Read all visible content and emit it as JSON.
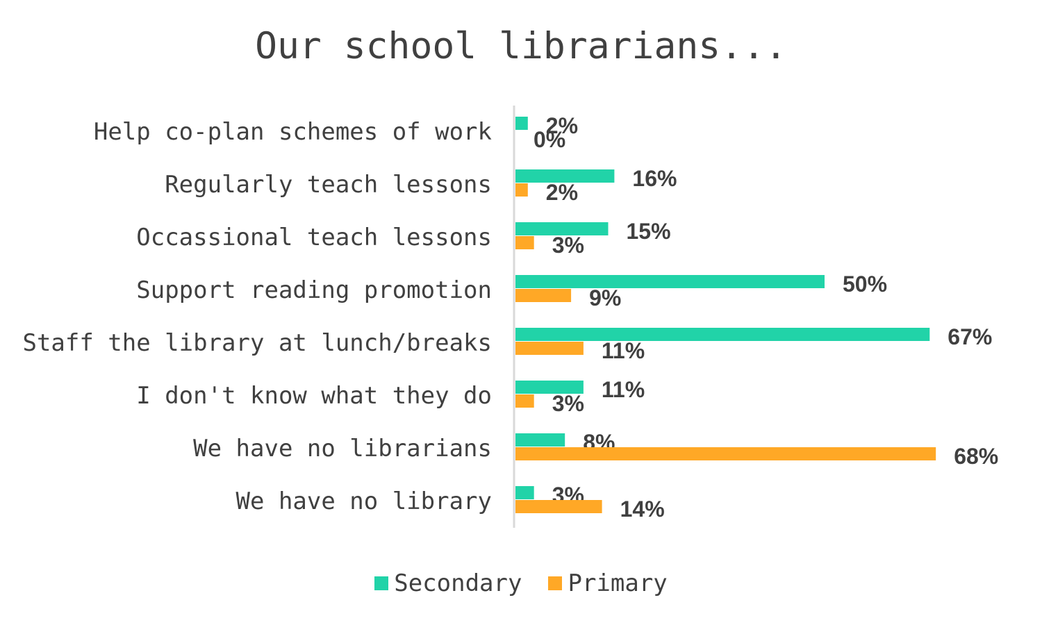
{
  "chart_data": {
    "type": "bar",
    "orientation": "horizontal",
    "title": "Our school librarians...",
    "categories": [
      "Help co-plan schemes of work",
      "Regularly teach lessons",
      "Occassional teach lessons",
      "Support reading promotion",
      "Staff the library at lunch/breaks",
      "I don't know what they do",
      "We have no librarians",
      "We have no library"
    ],
    "series": [
      {
        "name": "Secondary",
        "color": "#21D3A8",
        "values": [
          2,
          16,
          15,
          50,
          67,
          11,
          8,
          3
        ],
        "labels": [
          "2%",
          "16%",
          "15%",
          "50%",
          "67%",
          "11%",
          "8%",
          "3%"
        ]
      },
      {
        "name": "Primary",
        "color": "#FFA826",
        "values": [
          0,
          2,
          3,
          9,
          11,
          3,
          68,
          14
        ],
        "labels": [
          "0%",
          "2%",
          "3%",
          "9%",
          "11%",
          "3%",
          "68%",
          "14%"
        ]
      }
    ],
    "xlim": [
      0,
      70
    ],
    "grid": false,
    "legend": "bottom"
  }
}
